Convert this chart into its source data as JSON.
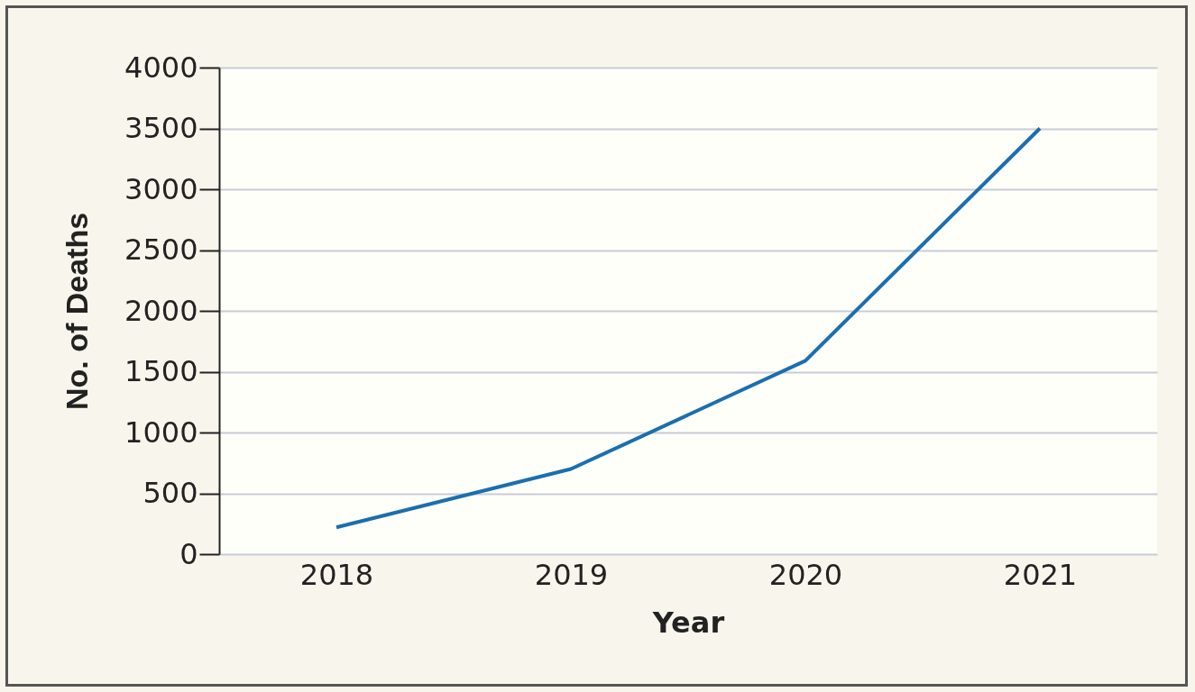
{
  "chart_data": {
    "type": "line",
    "xlabel": "Year",
    "ylabel": "No. of Deaths",
    "categories": [
      "2018",
      "2019",
      "2020",
      "2021"
    ],
    "series": [
      {
        "color": "#1a6faf",
        "values": [
          220,
          700,
          1590,
          3500
        ]
      }
    ],
    "ylim": [
      0,
      4000
    ],
    "yticks": [
      0,
      500,
      1000,
      1500,
      2000,
      2500,
      3000,
      3500,
      4000
    ],
    "grid": "y",
    "marker": "none",
    "line_style": "solid"
  }
}
